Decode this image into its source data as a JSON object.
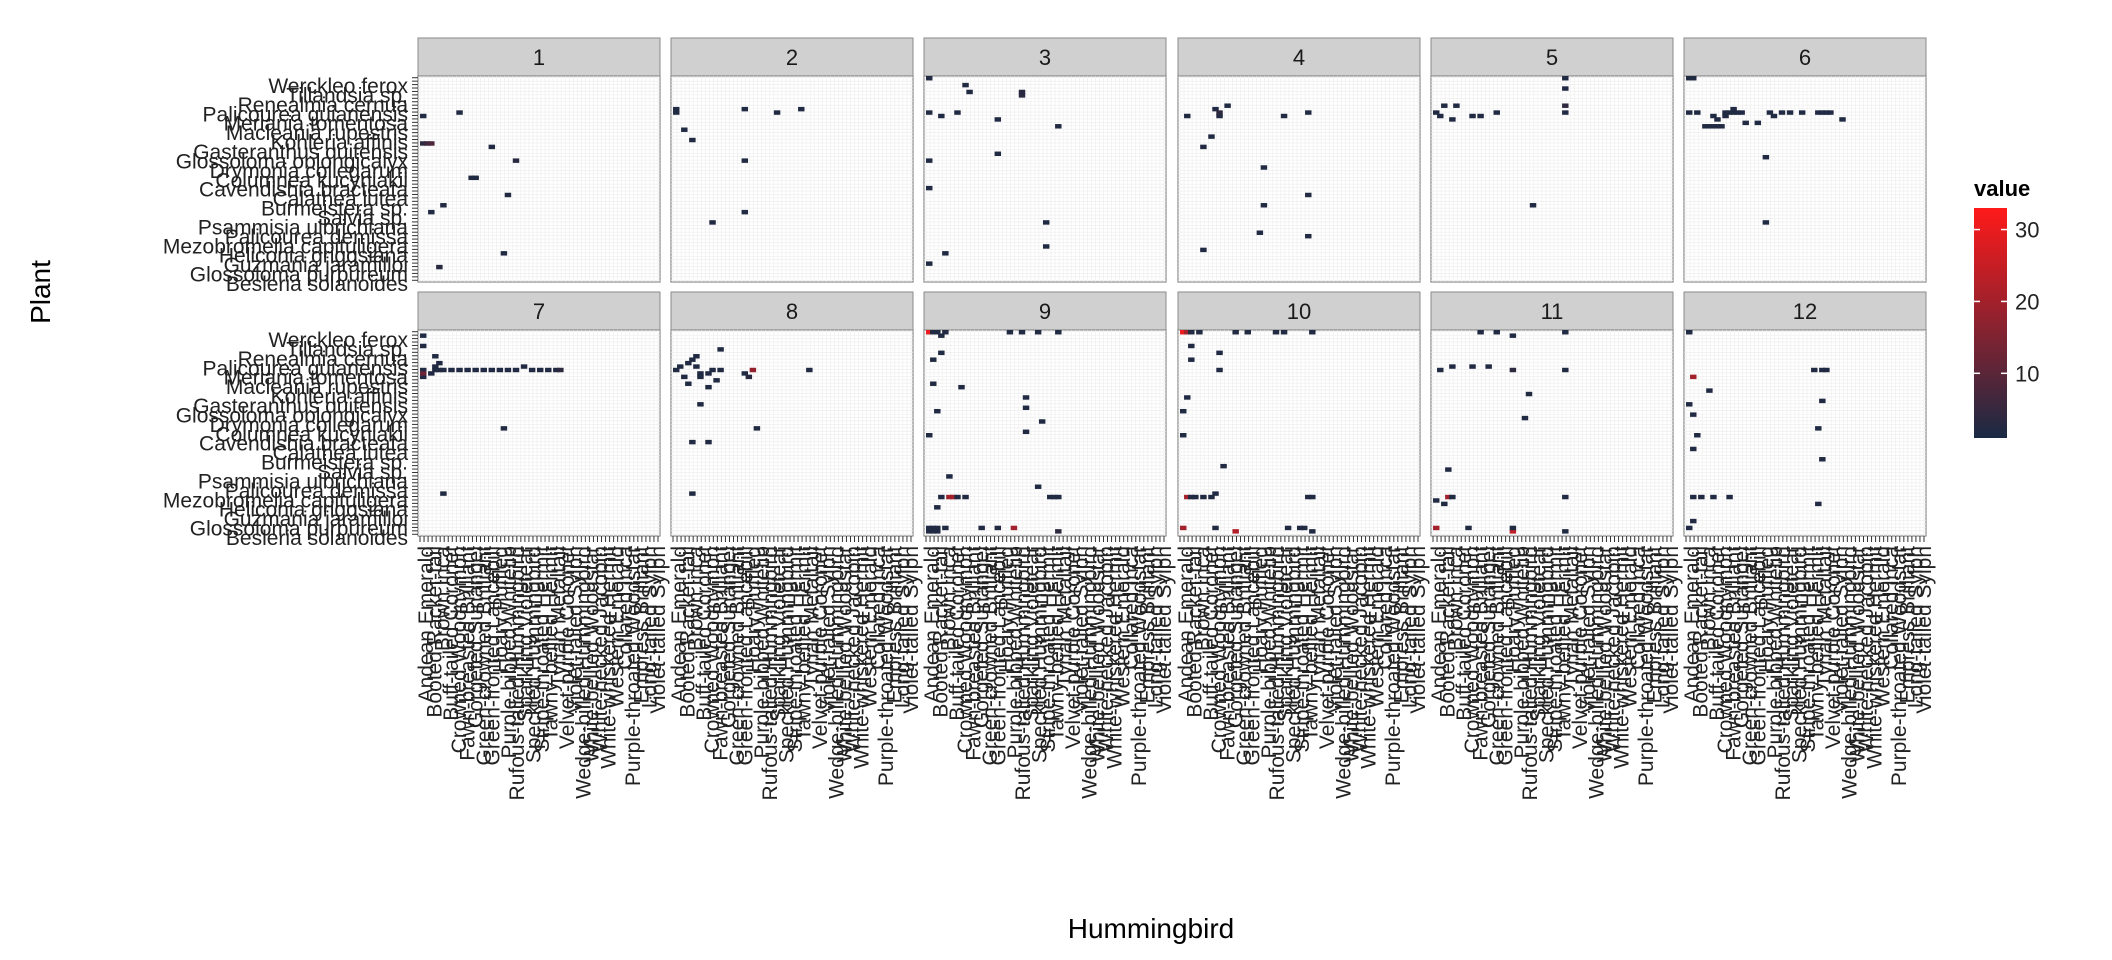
{
  "chart_data": {
    "type": "heatmap",
    "title": "",
    "xlabel": "Hummingbird",
    "ylabel": "Plant",
    "facets": [
      "1",
      "2",
      "3",
      "4",
      "5",
      "6",
      "7",
      "8",
      "9",
      "10",
      "11",
      "12"
    ],
    "x_categories": [
      "Andean Emerald",
      "Booted Racket-tail",
      "Brown Inca",
      "Buff-tailed Coronet",
      "Crowned Woodnymph",
      "Fawn-breasted Brilliant",
      "Gorgeted Sunangel",
      "Green-crowned Brilliant",
      "Green-fronted Lancebill",
      "Hoary Puffleg",
      "Purple-bibbed Whitetip",
      "Rufous-tailed Hummingbird",
      "Sparkling Violetear",
      "Speckled Hummingbird",
      "Stripe-throated Hermit",
      "Tawny-bellied Hermit",
      "Tyrian Metaltail",
      "Velvet-purple Coronet",
      "Violet-tailed Sylph",
      "Wedge-billed Hummingbird",
      "White-bellied Woodstar",
      "White-necked Jacobin",
      "White-whiskered Hermit",
      "Western Emerald",
      "Collared Inca",
      "Purple-throated Woodstar",
      "Empress Brilliant",
      "Long-tailed Sylph",
      "Violet-tailed Sylph"
    ],
    "y_categories": [
      "Besleria solanoides",
      "Glossoloma purpureum",
      "Guzmania jaramilloi",
      "Heliconia griggsiana",
      "Mezobromelia capituligera",
      "Palicourea demissa",
      "Psammisia ulbrichiana",
      "Salvia sp.",
      "Burmeistera sp.",
      "Calathea lutea",
      "Cavendishia bracteata",
      "Columnea kucyniakii",
      "Drymonia collegarum",
      "Glossoloma oblongicalyx",
      "Gasteranthus quitensis",
      "Kohleria affinis",
      "Macleania rupestris",
      "Meriania tomentosa",
      "Palicourea guianensis",
      "Renealmia cernua",
      "Tillandsia sp.",
      "Werckleo ferox"
    ],
    "y_labels_shown": [
      "Werckleo ferox",
      "Tillandsia sp.",
      "Renealmia cernua",
      "Palicourea guianensis",
      "Meriania tomentosa",
      "Macleania rupestris",
      "Kohleria affinis",
      "Gasteranthus quitensis",
      "Glossoloma oblongicalyx",
      "Drymonia collegarum",
      "Columnea kucyniakii",
      "Cavendishia bracteata",
      "Calathea lutea",
      "Burmeistera sp.",
      "Salvia sp.",
      "Psammisia ulbrichiana",
      "Palicourea demissa",
      "Mezobromelia capituligera",
      "Heliconia griggsiana",
      "Guzmania jaramilloi",
      "Glossoloma purpureum",
      "Besleria solanoides"
    ],
    "n_x": 60,
    "n_y": 60,
    "legend": {
      "title": "value",
      "ticks": [
        10,
        20,
        30
      ],
      "range": [
        1,
        33
      ],
      "low_color": "#1a2a44",
      "high_color": "#ff1a1a",
      "placement": "right"
    },
    "grid": true,
    "cells": {
      "1": [
        [
          1,
          40,
          4
        ],
        [
          2,
          40,
          6
        ],
        [
          3,
          40,
          8
        ],
        [
          3,
          20,
          2
        ],
        [
          5,
          4,
          3
        ],
        [
          13,
          30,
          2
        ],
        [
          14,
          30,
          2
        ],
        [
          6,
          22,
          2
        ],
        [
          21,
          8,
          2
        ],
        [
          22,
          25,
          2
        ],
        [
          24,
          35,
          3
        ],
        [
          10,
          49,
          2
        ],
        [
          18,
          39,
          2
        ],
        [
          1,
          48,
          2
        ]
      ],
      "2": [
        [
          1,
          49,
          2
        ],
        [
          1,
          50,
          2
        ],
        [
          3,
          44,
          2
        ],
        [
          5,
          41,
          2
        ],
        [
          10,
          17,
          2
        ],
        [
          18,
          20,
          2
        ],
        [
          18,
          35,
          2
        ],
        [
          18,
          50,
          2
        ],
        [
          26,
          49,
          2
        ],
        [
          32,
          50,
          2
        ]
      ],
      "3": [
        [
          1,
          5,
          2
        ],
        [
          1,
          27,
          2
        ],
        [
          1,
          35,
          2
        ],
        [
          1,
          49,
          2
        ],
        [
          1,
          59,
          2
        ],
        [
          4,
          48,
          2
        ],
        [
          5,
          8,
          2
        ],
        [
          8,
          49,
          2
        ],
        [
          10,
          57,
          2
        ],
        [
          18,
          37,
          2
        ],
        [
          18,
          47,
          2
        ],
        [
          24,
          54,
          3
        ],
        [
          24,
          55,
          3
        ],
        [
          30,
          10,
          2
        ],
        [
          30,
          17,
          2
        ],
        [
          33,
          45,
          2
        ],
        [
          11,
          55,
          2
        ]
      ],
      "4": [
        [
          2,
          48,
          2
        ],
        [
          6,
          9,
          2
        ],
        [
          6,
          39,
          2
        ],
        [
          8,
          42,
          2
        ],
        [
          9,
          50,
          2
        ],
        [
          10,
          48,
          2
        ],
        [
          10,
          49,
          4
        ],
        [
          12,
          51,
          2
        ],
        [
          20,
          14,
          2
        ],
        [
          21,
          22,
          2
        ],
        [
          21,
          33,
          2
        ],
        [
          26,
          48,
          2
        ],
        [
          32,
          13,
          2
        ],
        [
          32,
          25,
          2
        ],
        [
          32,
          49,
          2
        ]
      ],
      "5": [
        [
          1,
          49,
          2
        ],
        [
          2,
          48,
          2
        ],
        [
          3,
          51,
          2
        ],
        [
          5,
          47,
          2
        ],
        [
          6,
          51,
          2
        ],
        [
          10,
          48,
          2
        ],
        [
          12,
          48,
          2
        ],
        [
          16,
          49,
          2
        ],
        [
          25,
          22,
          2
        ],
        [
          33,
          49,
          2
        ],
        [
          33,
          51,
          4
        ],
        [
          33,
          56,
          2
        ],
        [
          33,
          59,
          2
        ]
      ],
      "6": [
        [
          1,
          49,
          2
        ],
        [
          2,
          59,
          2
        ],
        [
          3,
          49,
          2
        ],
        [
          5,
          45,
          2
        ],
        [
          6,
          45,
          2
        ],
        [
          7,
          45,
          2
        ],
        [
          7,
          48,
          2
        ],
        [
          8,
          45,
          2
        ],
        [
          9,
          45,
          2
        ],
        [
          10,
          49,
          2
        ],
        [
          11,
          49,
          2
        ],
        [
          12,
          49,
          2
        ],
        [
          13,
          49,
          2
        ],
        [
          14,
          49,
          2
        ],
        [
          15,
          46,
          2
        ],
        [
          18,
          46,
          2
        ],
        [
          21,
          49,
          2
        ],
        [
          22,
          48,
          2
        ],
        [
          24,
          49,
          2
        ],
        [
          26,
          49,
          2
        ],
        [
          29,
          49,
          2
        ],
        [
          33,
          49,
          2
        ],
        [
          34,
          49,
          2
        ],
        [
          35,
          49,
          2
        ],
        [
          36,
          49,
          2
        ],
        [
          10,
          48,
          2
        ],
        [
          12,
          50,
          2
        ],
        [
          20,
          17,
          2
        ],
        [
          20,
          36,
          2
        ],
        [
          39,
          47,
          2
        ],
        [
          8,
          47,
          2
        ],
        [
          1,
          59,
          2
        ]
      ],
      "7": [
        [
          1,
          46,
          2
        ],
        [
          1,
          48,
          2
        ],
        [
          1,
          55,
          2
        ],
        [
          1,
          58,
          2
        ],
        [
          3,
          47,
          2
        ],
        [
          4,
          48,
          2
        ],
        [
          4,
          49,
          2
        ],
        [
          5,
          48,
          2
        ],
        [
          5,
          50,
          2
        ],
        [
          6,
          48,
          2
        ],
        [
          8,
          48,
          2
        ],
        [
          10,
          48,
          2
        ],
        [
          12,
          48,
          2
        ],
        [
          14,
          48,
          2
        ],
        [
          16,
          48,
          2
        ],
        [
          18,
          48,
          2
        ],
        [
          20,
          48,
          2
        ],
        [
          22,
          48,
          2
        ],
        [
          24,
          48,
          2
        ],
        [
          26,
          49,
          2
        ],
        [
          28,
          48,
          2
        ],
        [
          30,
          48,
          2
        ],
        [
          32,
          48,
          2
        ],
        [
          34,
          48,
          2
        ],
        [
          35,
          48,
          4
        ],
        [
          6,
          12,
          2
        ],
        [
          21,
          31,
          2
        ],
        [
          1,
          47,
          12
        ],
        [
          4,
          52,
          2
        ]
      ],
      "8": [
        [
          1,
          48,
          2
        ],
        [
          2,
          49,
          2
        ],
        [
          3,
          46,
          2
        ],
        [
          4,
          44,
          2
        ],
        [
          4,
          50,
          2
        ],
        [
          5,
          51,
          2
        ],
        [
          6,
          49,
          2
        ],
        [
          6,
          52,
          2
        ],
        [
          7,
          46,
          2
        ],
        [
          7,
          47,
          2
        ],
        [
          9,
          43,
          2
        ],
        [
          9,
          47,
          2
        ],
        [
          10,
          48,
          2
        ],
        [
          11,
          45,
          2
        ],
        [
          12,
          54,
          2
        ],
        [
          12,
          48,
          2
        ],
        [
          18,
          47,
          2
        ],
        [
          19,
          46,
          3
        ],
        [
          20,
          48,
          18
        ],
        [
          5,
          12,
          2
        ],
        [
          5,
          27,
          2
        ],
        [
          7,
          38,
          2
        ],
        [
          9,
          27,
          2
        ],
        [
          21,
          31,
          2
        ],
        [
          34,
          48,
          2
        ]
      ],
      "9": [
        [
          1,
          1,
          2
        ],
        [
          1,
          2,
          2
        ],
        [
          2,
          1,
          2
        ],
        [
          2,
          2,
          2
        ],
        [
          3,
          1,
          2
        ],
        [
          3,
          2,
          2
        ],
        [
          5,
          2,
          2
        ],
        [
          4,
          11,
          2
        ],
        [
          6,
          11,
          20
        ],
        [
          7,
          11,
          20
        ],
        [
          8,
          11,
          2
        ],
        [
          10,
          11,
          2
        ],
        [
          14,
          2,
          2
        ],
        [
          18,
          2,
          2
        ],
        [
          22,
          2,
          20
        ],
        [
          33,
          1,
          4
        ],
        [
          33,
          11,
          2
        ],
        [
          32,
          11,
          2
        ],
        [
          31,
          11,
          2
        ],
        [
          3,
          8,
          2
        ],
        [
          6,
          17,
          2
        ],
        [
          1,
          29,
          2
        ],
        [
          3,
          36,
          2
        ],
        [
          2,
          44,
          2
        ],
        [
          4,
          58,
          2
        ],
        [
          1,
          59,
          30
        ],
        [
          2,
          59,
          2
        ],
        [
          3,
          59,
          2
        ],
        [
          5,
          59,
          2
        ],
        [
          21,
          59,
          2
        ],
        [
          24,
          59,
          2
        ],
        [
          28,
          59,
          2
        ],
        [
          33,
          59,
          2
        ],
        [
          25,
          30,
          2
        ],
        [
          25,
          37,
          2
        ],
        [
          25,
          40,
          2
        ],
        [
          29,
          33,
          2
        ],
        [
          9,
          43,
          2
        ],
        [
          4,
          53,
          2
        ],
        [
          28,
          14,
          2
        ],
        [
          2,
          51,
          2
        ]
      ],
      "10": [
        [
          1,
          2,
          20
        ],
        [
          2,
          11,
          20
        ],
        [
          3,
          11,
          2
        ],
        [
          4,
          11,
          2
        ],
        [
          6,
          11,
          2
        ],
        [
          8,
          11,
          2
        ],
        [
          9,
          2,
          2
        ],
        [
          14,
          1,
          22
        ],
        [
          27,
          2,
          2
        ],
        [
          30,
          2,
          2
        ],
        [
          33,
          1,
          2
        ],
        [
          33,
          11,
          2
        ],
        [
          1,
          29,
          2
        ],
        [
          1,
          36,
          2
        ],
        [
          2,
          40,
          2
        ],
        [
          3,
          51,
          2
        ],
        [
          3,
          55,
          2
        ],
        [
          10,
          48,
          2
        ],
        [
          10,
          53,
          2
        ],
        [
          24,
          59,
          2
        ],
        [
          1,
          59,
          30
        ],
        [
          2,
          59,
          20
        ],
        [
          3,
          59,
          2
        ],
        [
          5,
          59,
          2
        ],
        [
          14,
          59,
          2
        ],
        [
          17,
          59,
          2
        ],
        [
          26,
          59,
          2
        ],
        [
          33,
          59,
          2
        ],
        [
          9,
          12,
          2
        ],
        [
          31,
          2,
          2
        ],
        [
          32,
          11,
          2
        ],
        [
          11,
          20,
          2
        ]
      ],
      "11": [
        [
          1,
          2,
          20
        ],
        [
          3,
          9,
          2
        ],
        [
          4,
          11,
          20
        ],
        [
          5,
          11,
          2
        ],
        [
          1,
          10,
          2
        ],
        [
          9,
          2,
          2
        ],
        [
          20,
          1,
          24
        ],
        [
          20,
          2,
          2
        ],
        [
          33,
          1,
          2
        ],
        [
          33,
          11,
          2
        ],
        [
          4,
          19,
          2
        ],
        [
          2,
          48,
          2
        ],
        [
          5,
          49,
          2
        ],
        [
          10,
          49,
          2
        ],
        [
          14,
          49,
          2
        ],
        [
          20,
          48,
          4
        ],
        [
          20,
          58,
          2
        ],
        [
          23,
          34,
          2
        ],
        [
          24,
          41,
          2
        ],
        [
          33,
          48,
          2
        ],
        [
          33,
          59,
          2
        ],
        [
          16,
          59,
          2
        ],
        [
          12,
          59,
          2
        ]
      ],
      "12": [
        [
          1,
          2,
          2
        ],
        [
          2,
          4,
          2
        ],
        [
          4,
          11,
          2
        ],
        [
          7,
          11,
          2
        ],
        [
          11,
          11,
          2
        ],
        [
          3,
          29,
          2
        ],
        [
          2,
          35,
          2
        ],
        [
          6,
          42,
          2
        ],
        [
          1,
          38,
          2
        ],
        [
          2,
          46,
          20
        ],
        [
          1,
          59,
          2
        ],
        [
          33,
          9,
          2
        ],
        [
          33,
          31,
          2
        ],
        [
          34,
          39,
          2
        ],
        [
          34,
          48,
          2
        ],
        [
          35,
          48,
          2
        ],
        [
          32,
          48,
          2
        ],
        [
          34,
          22,
          2
        ],
        [
          2,
          25,
          2
        ],
        [
          2,
          11,
          2
        ]
      ]
    }
  }
}
